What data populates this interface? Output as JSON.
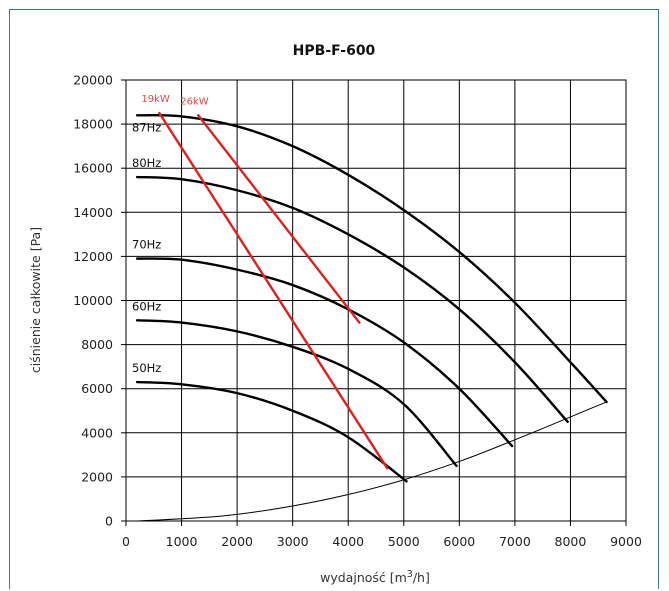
{
  "chart_data": {
    "type": "line",
    "title": "HPB-F-600",
    "xlabel": "wydajność [m",
    "xlabel_sup": "3",
    "xlabel_tail": "/h]",
    "ylabel": "ciśnienie całkowite [Pa]",
    "xlim": [
      0,
      9000
    ],
    "ylim": [
      0,
      20000
    ],
    "x_ticks": [
      0,
      1000,
      2000,
      3000,
      4000,
      5000,
      6000,
      7000,
      8000,
      9000
    ],
    "y_ticks": [
      0,
      2000,
      4000,
      6000,
      8000,
      10000,
      12000,
      14000,
      16000,
      18000,
      20000
    ],
    "grid": true,
    "series": [
      {
        "name": "87Hz",
        "color": "#000000",
        "x": [
          200,
          1000,
          2000,
          3000,
          4000,
          5000,
          6000,
          7000,
          8000,
          8650
        ],
        "y": [
          18400,
          18350,
          17900,
          17000,
          15700,
          14100,
          12200,
          9900,
          7200,
          5400
        ]
      },
      {
        "name": "80Hz",
        "color": "#000000",
        "x": [
          200,
          1000,
          2000,
          3000,
          4000,
          5000,
          6000,
          7000,
          7950
        ],
        "y": [
          15600,
          15500,
          15000,
          14200,
          13000,
          11500,
          9600,
          7200,
          4500
        ]
      },
      {
        "name": "70Hz",
        "color": "#000000",
        "x": [
          200,
          1000,
          2000,
          3000,
          4000,
          5000,
          6000,
          6950
        ],
        "y": [
          11900,
          11850,
          11400,
          10700,
          9600,
          8100,
          6000,
          3400
        ]
      },
      {
        "name": "60Hz",
        "color": "#000000",
        "x": [
          200,
          1000,
          2000,
          3000,
          4000,
          5000,
          5950
        ],
        "y": [
          9100,
          9000,
          8600,
          7900,
          6900,
          5300,
          2500
        ]
      },
      {
        "name": "50Hz",
        "color": "#000000",
        "x": [
          200,
          1000,
          2000,
          3000,
          4000,
          5050
        ],
        "y": [
          6300,
          6200,
          5800,
          5000,
          3800,
          1800
        ]
      },
      {
        "name": "19kW",
        "color": "#e02020",
        "x": [
          600,
          4700
        ],
        "y": [
          18500,
          2400
        ]
      },
      {
        "name": "26kW",
        "color": "#e02020",
        "x": [
          1300,
          4200
        ],
        "y": [
          18400,
          9000
        ]
      },
      {
        "name": "system curve",
        "color": "#000000",
        "x": [
          200,
          2000,
          4000,
          6000,
          8650
        ],
        "y": [
          0,
          300,
          1200,
          2700,
          5400
        ]
      }
    ]
  }
}
